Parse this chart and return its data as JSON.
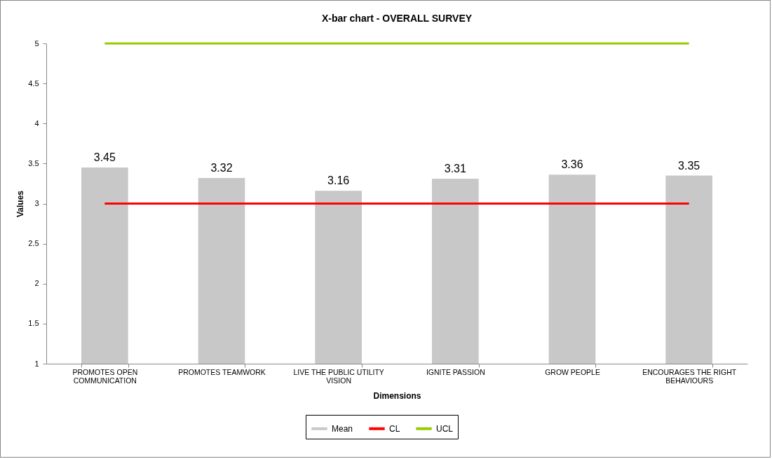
{
  "chart_data": {
    "type": "bar",
    "title": "X-bar chart - OVERALL SURVEY",
    "xlabel": "Dimensions",
    "ylabel": "Values",
    "categories": [
      "PROMOTES OPEN COMMUNICATION",
      "PROMOTES TEAMWORK",
      "LIVE THE PUBLIC UTILITY VISION",
      "IGNITE PASSION",
      "GROW PEOPLE",
      "ENCOURAGES THE RIGHT BEHAVIOURS"
    ],
    "series": [
      {
        "name": "Mean",
        "color": "#c8c8c8",
        "values": [
          3.45,
          3.32,
          3.16,
          3.31,
          3.36,
          3.35
        ],
        "value_labels": [
          "3.45",
          "3.32",
          "3.16",
          "3.31",
          "3.36",
          "3.35"
        ]
      },
      {
        "name": "CL",
        "type": "line",
        "color": "#ff0000",
        "values": [
          3,
          3,
          3,
          3,
          3,
          3
        ]
      },
      {
        "name": "UCL",
        "type": "line",
        "color": "#99cc00",
        "values": [
          5,
          5,
          5,
          5,
          5,
          5
        ]
      }
    ],
    "ylim": [
      1,
      5
    ],
    "yticks": [
      1,
      1.5,
      2,
      2.5,
      3,
      3.5,
      4,
      4.5,
      5
    ],
    "legend": "bottom"
  }
}
